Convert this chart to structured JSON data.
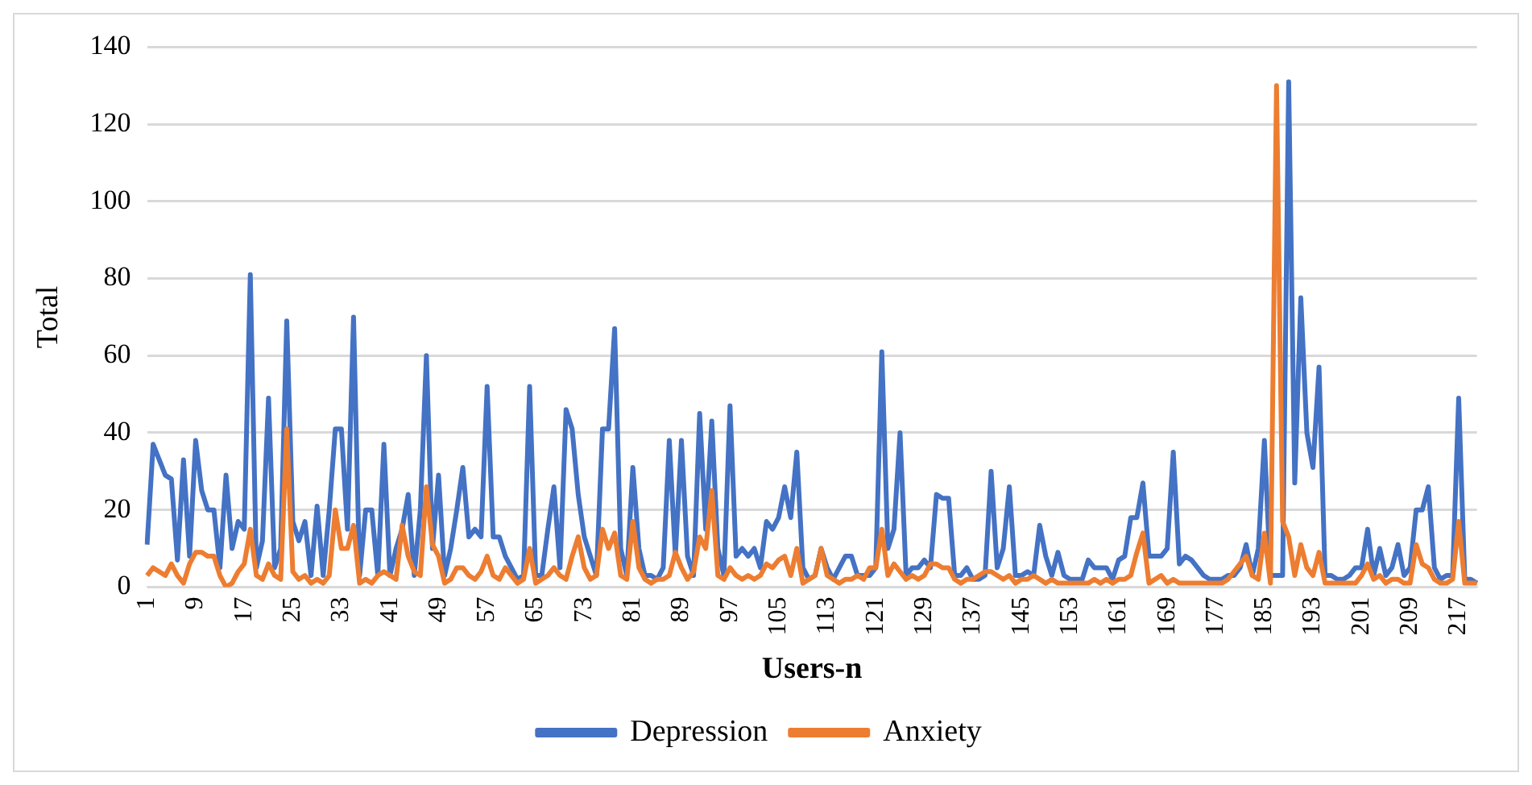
{
  "chart_data": {
    "type": "line",
    "xlabel": "Users-n",
    "ylabel": "Total",
    "ylim": [
      0,
      140
    ],
    "yticks": [
      0,
      20,
      40,
      60,
      80,
      100,
      120,
      140
    ],
    "grid": "y",
    "legend": "bottom",
    "marker": "none",
    "line_style": "solid",
    "categories": [
      "1",
      null,
      null,
      null,
      null,
      null,
      null,
      null,
      "9",
      null,
      null,
      null,
      null,
      null,
      null,
      null,
      "17",
      null,
      null,
      null,
      null,
      null,
      null,
      null,
      "25",
      null,
      null,
      null,
      null,
      null,
      null,
      null,
      "33",
      null,
      null,
      null,
      null,
      null,
      null,
      null,
      "41",
      null,
      null,
      null,
      null,
      null,
      null,
      null,
      "49",
      null,
      null,
      null,
      null,
      null,
      null,
      null,
      "57",
      null,
      null,
      null,
      null,
      null,
      null,
      null,
      "65",
      null,
      null,
      null,
      null,
      null,
      null,
      null,
      "73",
      null,
      null,
      null,
      null,
      null,
      null,
      null,
      "81",
      null,
      null,
      null,
      null,
      null,
      null,
      null,
      "89",
      null,
      null,
      null,
      null,
      null,
      null,
      null,
      "97",
      null,
      null,
      null,
      null,
      null,
      null,
      null,
      "105",
      null,
      null,
      null,
      null,
      null,
      null,
      null,
      "113",
      null,
      null,
      null,
      null,
      null,
      null,
      null,
      "121",
      null,
      null,
      null,
      null,
      null,
      null,
      null,
      "129",
      null,
      null,
      null,
      null,
      null,
      null,
      null,
      "137",
      null,
      null,
      null,
      null,
      null,
      null,
      null,
      "145",
      null,
      null,
      null,
      null,
      null,
      null,
      null,
      "153",
      null,
      null,
      null,
      null,
      null,
      null,
      null,
      "161",
      null,
      null,
      null,
      null,
      null,
      null,
      null,
      "169",
      null,
      null,
      null,
      null,
      null,
      null,
      null,
      "177",
      null,
      null,
      null,
      null,
      null,
      null,
      null,
      "185",
      null,
      null,
      null,
      null,
      null,
      null,
      null,
      "193",
      null,
      null,
      null,
      null,
      null,
      null,
      null,
      "201",
      null,
      null,
      null,
      null,
      null,
      null,
      null,
      "209",
      null,
      null,
      null,
      null,
      null,
      null,
      null,
      "217",
      null,
      null,
      null
    ],
    "series": [
      {
        "name": "Depression",
        "color": "#4472c4",
        "values": [
          11,
          37,
          33,
          29,
          28,
          7,
          33,
          8,
          38,
          25,
          20,
          20,
          5,
          29,
          10,
          17,
          15,
          81,
          5,
          12,
          49,
          5,
          10,
          69,
          17,
          12,
          17,
          3,
          21,
          3,
          20,
          41,
          41,
          15,
          70,
          3,
          20,
          20,
          3,
          37,
          3,
          10,
          15,
          24,
          3,
          20,
          60,
          10,
          29,
          3,
          10,
          20,
          31,
          13,
          15,
          13,
          52,
          13,
          13,
          8,
          5,
          2,
          3,
          52,
          3,
          3,
          15,
          26,
          5,
          46,
          41,
          24,
          13,
          8,
          3,
          41,
          41,
          67,
          10,
          3,
          31,
          10,
          3,
          3,
          2,
          5,
          38,
          8,
          38,
          8,
          3,
          45,
          15,
          43,
          10,
          3,
          47,
          8,
          10,
          8,
          10,
          5,
          17,
          15,
          18,
          26,
          18,
          35,
          5,
          2,
          3,
          10,
          5,
          2,
          5,
          8,
          8,
          3,
          3,
          3,
          5,
          61,
          10,
          15,
          40,
          3,
          5,
          5,
          7,
          5,
          24,
          23,
          23,
          3,
          3,
          5,
          2,
          2,
          3,
          30,
          5,
          10,
          26,
          3,
          3,
          4,
          3,
          16,
          8,
          3,
          9,
          3,
          2,
          2,
          2,
          7,
          5,
          5,
          5,
          2,
          7,
          8,
          18,
          18,
          27,
          8,
          8,
          8,
          10,
          35,
          6,
          8,
          7,
          5,
          3,
          2,
          2,
          2,
          3,
          3,
          5,
          11,
          3,
          10,
          38,
          3,
          3,
          3,
          131,
          27,
          75,
          40,
          31,
          57,
          3,
          3,
          2,
          2,
          3,
          5,
          5,
          15,
          3,
          10,
          3,
          5,
          11,
          3,
          5,
          20,
          20,
          26,
          5,
          2,
          3,
          3,
          49,
          2,
          2,
          1
        ]
      },
      {
        "name": "Anxiety",
        "color": "#ed7d31",
        "values": [
          3,
          5,
          4,
          3,
          6,
          3,
          1,
          6,
          9,
          9,
          8,
          8,
          3,
          0,
          1,
          4,
          6,
          15,
          3,
          2,
          6,
          3,
          2,
          41,
          4,
          2,
          3,
          1,
          2,
          1,
          3,
          20,
          10,
          10,
          16,
          1,
          2,
          1,
          3,
          4,
          3,
          2,
          16,
          8,
          4,
          3,
          26,
          11,
          8,
          1,
          2,
          5,
          5,
          3,
          2,
          4,
          8,
          3,
          2,
          5,
          3,
          1,
          2,
          10,
          1,
          2,
          3,
          5,
          3,
          2,
          8,
          13,
          5,
          2,
          3,
          15,
          10,
          14,
          3,
          2,
          17,
          5,
          2,
          1,
          2,
          2,
          3,
          9,
          5,
          2,
          4,
          13,
          10,
          25,
          3,
          2,
          5,
          3,
          2,
          3,
          2,
          3,
          6,
          5,
          7,
          8,
          3,
          10,
          1,
          2,
          3,
          10,
          3,
          2,
          1,
          2,
          2,
          3,
          2,
          5,
          5,
          15,
          3,
          6,
          4,
          2,
          3,
          2,
          3,
          6,
          6,
          5,
          5,
          2,
          1,
          2,
          2,
          3,
          4,
          4,
          3,
          2,
          3,
          1,
          2,
          2,
          3,
          2,
          1,
          2,
          1,
          1,
          1,
          1,
          1,
          1,
          2,
          1,
          2,
          1,
          2,
          2,
          3,
          9,
          14,
          1,
          2,
          3,
          1,
          2,
          1,
          1,
          1,
          1,
          1,
          1,
          1,
          1,
          2,
          4,
          6,
          8,
          3,
          2,
          14,
          1,
          130,
          17,
          13,
          3,
          11,
          5,
          3,
          9,
          1,
          1,
          1,
          1,
          1,
          1,
          3,
          6,
          2,
          3,
          1,
          2,
          2,
          1,
          1,
          11,
          6,
          5,
          2,
          1,
          1,
          2,
          17,
          1,
          1,
          1
        ]
      }
    ]
  }
}
